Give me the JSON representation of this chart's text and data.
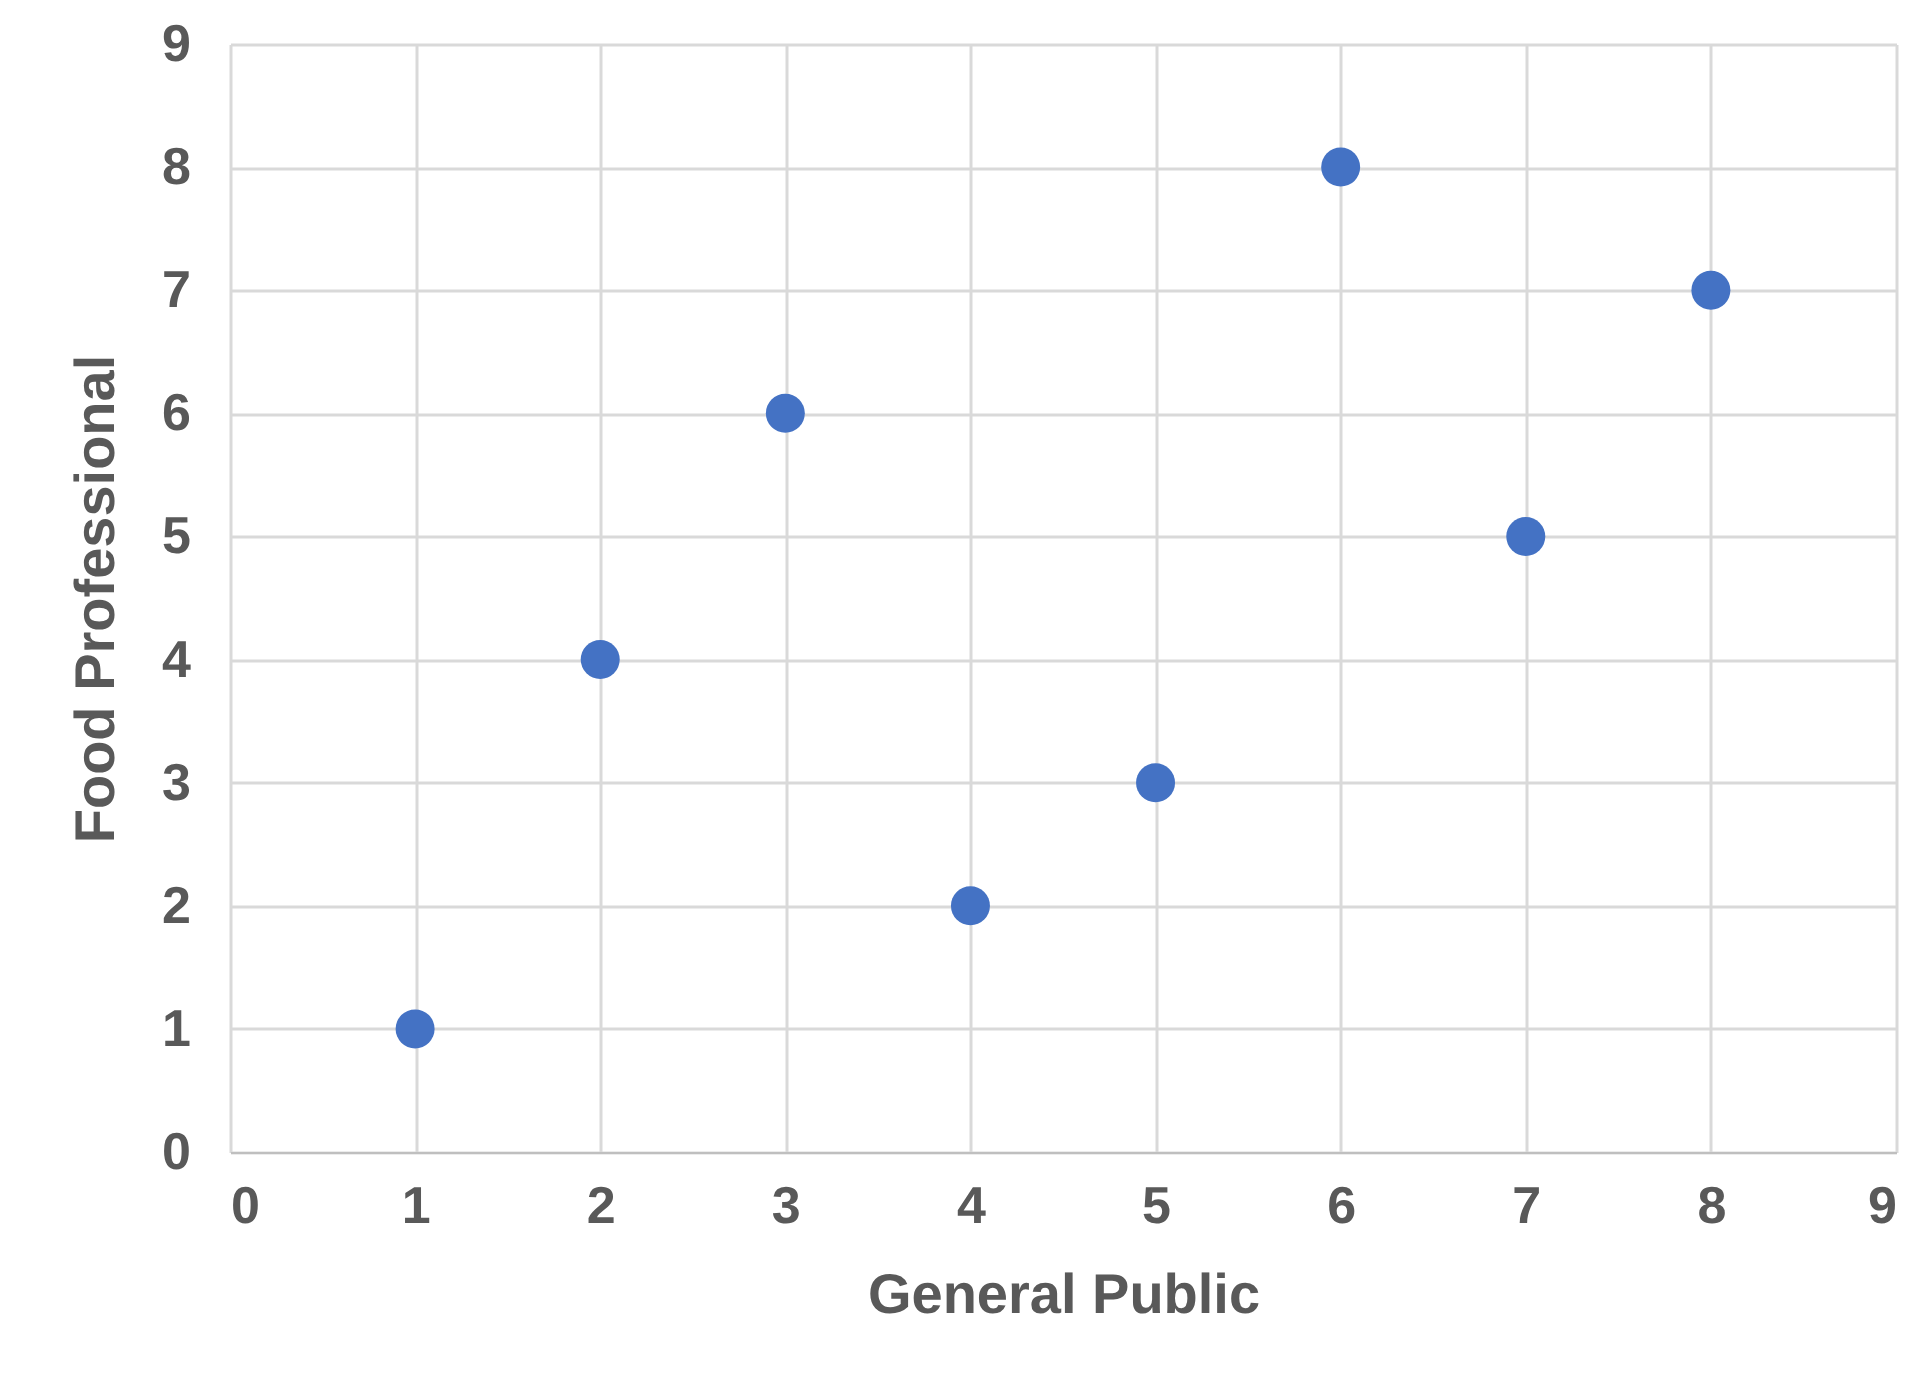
{
  "chart_data": {
    "type": "scatter",
    "xlabel": "General Public",
    "ylabel": "Food Professional",
    "x": [
      1,
      2,
      3,
      4,
      5,
      6,
      7,
      8
    ],
    "series": [
      {
        "color": "#4472c4",
        "values": [
          1,
          4,
          6,
          2,
          3,
          8,
          5,
          7
        ]
      }
    ],
    "xlim": [
      0,
      9
    ],
    "ylim": [
      0,
      9
    ],
    "xticks": [
      0,
      1,
      2,
      3,
      4,
      5,
      6,
      7,
      8,
      9
    ],
    "yticks": [
      0,
      1,
      2,
      3,
      4,
      5,
      6,
      7,
      8,
      9
    ],
    "grid": true,
    "marker": "circle"
  }
}
